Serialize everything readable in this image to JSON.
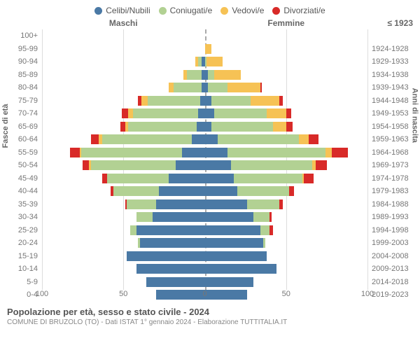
{
  "legend": [
    {
      "label": "Celibi/Nubili",
      "color": "#4a79a5"
    },
    {
      "label": "Coniugati/e",
      "color": "#b2d193"
    },
    {
      "label": "Vedovi/e",
      "color": "#f6c255"
    },
    {
      "label": "Divorziati/e",
      "color": "#d82a28"
    }
  ],
  "headers": {
    "male": "Maschi",
    "female": "Femmine",
    "year_top": "≤ 1923"
  },
  "axis": {
    "left_label": "Fasce di età",
    "right_label": "Anni di nascita",
    "xmax": 100,
    "ticks": [
      0,
      50,
      100
    ]
  },
  "colors": {
    "grid": "#dddddd",
    "center": "#aaaaaa",
    "bg": "#ffffff",
    "text": "#666666"
  },
  "rows": [
    {
      "age": "100+",
      "year": "≤ 1923",
      "m": [
        0,
        0,
        0,
        0
      ],
      "f": [
        0,
        0,
        0,
        0
      ]
    },
    {
      "age": "95-99",
      "year": "1924-1928",
      "m": [
        0,
        0,
        0,
        0
      ],
      "f": [
        0,
        0,
        4,
        0
      ]
    },
    {
      "age": "90-94",
      "year": "1929-1933",
      "m": [
        2,
        2,
        2,
        0
      ],
      "f": [
        0,
        1,
        10,
        0
      ]
    },
    {
      "age": "85-89",
      "year": "1934-1938",
      "m": [
        2,
        9,
        2,
        0
      ],
      "f": [
        2,
        4,
        16,
        0
      ]
    },
    {
      "age": "80-84",
      "year": "1939-1943",
      "m": [
        2,
        17,
        3,
        0
      ],
      "f": [
        2,
        12,
        20,
        1
      ]
    },
    {
      "age": "75-79",
      "year": "1944-1948",
      "m": [
        3,
        32,
        4,
        2
      ],
      "f": [
        4,
        24,
        18,
        2
      ]
    },
    {
      "age": "70-74",
      "year": "1949-1953",
      "m": [
        4,
        40,
        3,
        4
      ],
      "f": [
        6,
        32,
        12,
        3
      ]
    },
    {
      "age": "65-69",
      "year": "1954-1958",
      "m": [
        5,
        42,
        2,
        3
      ],
      "f": [
        4,
        38,
        8,
        4
      ]
    },
    {
      "age": "60-64",
      "year": "1959-1963",
      "m": [
        8,
        55,
        2,
        5
      ],
      "f": [
        8,
        50,
        6,
        6
      ]
    },
    {
      "age": "55-59",
      "year": "1964-1968",
      "m": [
        14,
        62,
        1,
        6
      ],
      "f": [
        14,
        60,
        4,
        10
      ]
    },
    {
      "age": "50-54",
      "year": "1969-1973",
      "m": [
        18,
        52,
        1,
        4
      ],
      "f": [
        16,
        50,
        2,
        7
      ]
    },
    {
      "age": "45-49",
      "year": "1974-1978",
      "m": [
        22,
        38,
        0,
        3
      ],
      "f": [
        18,
        42,
        1,
        6
      ]
    },
    {
      "age": "40-44",
      "year": "1979-1983",
      "m": [
        28,
        28,
        0,
        2
      ],
      "f": [
        20,
        32,
        0,
        3
      ]
    },
    {
      "age": "35-39",
      "year": "1984-1988",
      "m": [
        30,
        18,
        0,
        1
      ],
      "f": [
        26,
        20,
        0,
        2
      ]
    },
    {
      "age": "30-34",
      "year": "1989-1993",
      "m": [
        32,
        10,
        0,
        0
      ],
      "f": [
        30,
        10,
        0,
        1
      ]
    },
    {
      "age": "25-29",
      "year": "1994-1998",
      "m": [
        42,
        4,
        0,
        0
      ],
      "f": [
        34,
        6,
        0,
        2
      ]
    },
    {
      "age": "20-24",
      "year": "1999-2003",
      "m": [
        40,
        1,
        0,
        0
      ],
      "f": [
        36,
        1,
        0,
        0
      ]
    },
    {
      "age": "15-19",
      "year": "2004-2008",
      "m": [
        48,
        0,
        0,
        0
      ],
      "f": [
        38,
        0,
        0,
        0
      ]
    },
    {
      "age": "10-14",
      "year": "2009-2013",
      "m": [
        42,
        0,
        0,
        0
      ],
      "f": [
        44,
        0,
        0,
        0
      ]
    },
    {
      "age": "5-9",
      "year": "2014-2018",
      "m": [
        36,
        0,
        0,
        0
      ],
      "f": [
        30,
        0,
        0,
        0
      ]
    },
    {
      "age": "0-4",
      "year": "2019-2023",
      "m": [
        30,
        0,
        0,
        0
      ],
      "f": [
        26,
        0,
        0,
        0
      ]
    }
  ],
  "footer": {
    "title": "Popolazione per età, sesso e stato civile - 2024",
    "subtitle": "COMUNE DI BRUZOLO (TO) - Dati ISTAT 1° gennaio 2024 - Elaborazione TUTTITALIA.IT"
  }
}
